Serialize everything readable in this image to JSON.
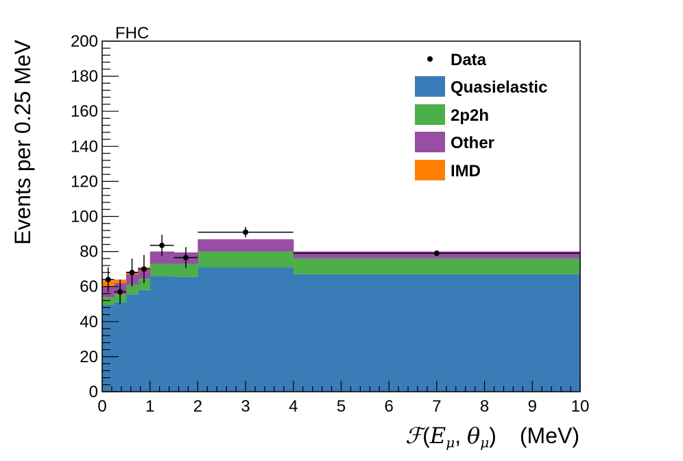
{
  "chart_data": {
    "type": "stacked-histogram",
    "tag": "FHC",
    "xlabel": {
      "func": "ℱ",
      "open": "(",
      "v1": "E",
      "v1sub": "μ",
      "sep": ", ",
      "v2": "θ",
      "v2sub": "μ",
      "close": ")",
      "unit": "(MeV)"
    },
    "ylabel": "Events per 0.25 MeV",
    "xlim": [
      0,
      10
    ],
    "ylim": [
      0,
      200
    ],
    "x_ticks": [
      "0",
      "1",
      "2",
      "3",
      "4",
      "5",
      "6",
      "7",
      "8",
      "9",
      "10"
    ],
    "y_ticks": [
      "0",
      "20",
      "40",
      "60",
      "80",
      "100",
      "120",
      "140",
      "160",
      "180",
      "200"
    ],
    "bin_edges": [
      0,
      0.25,
      0.5,
      0.75,
      1.0,
      1.5,
      2.0,
      4.0,
      10.0
    ],
    "series": [
      {
        "name": "Quasielastic",
        "color": "#3a7cb8",
        "values": [
          49.5,
          51,
          55.5,
          58,
          66,
          65.5,
          71,
          67
        ]
      },
      {
        "name": "2p2h",
        "color": "#4daf4a",
        "values": [
          4.5,
          4.5,
          5.5,
          6.5,
          7,
          7.5,
          9,
          9
        ]
      },
      {
        "name": "Other",
        "color": "#984ea3",
        "values": [
          6,
          6.5,
          6,
          5,
          7,
          6.5,
          7,
          4
        ]
      },
      {
        "name": "IMD",
        "color": "#ff7f00",
        "values": [
          3.5,
          2,
          1.5,
          1.5,
          0,
          0,
          0,
          0
        ]
      }
    ],
    "data_points": {
      "name": "Data",
      "x": [
        0.125,
        0.375,
        0.625,
        0.875,
        1.25,
        1.75,
        3.0,
        7.0
      ],
      "y": [
        64,
        57,
        68,
        70,
        83.5,
        76.5,
        91,
        79
      ],
      "xerr": [
        0.125,
        0.125,
        0.125,
        0.125,
        0.25,
        0.25,
        1.0,
        3.0
      ],
      "yerr": [
        7,
        7,
        8,
        8,
        6,
        6,
        3,
        1.5
      ]
    },
    "legend": [
      {
        "label": "Data",
        "style": "marker"
      },
      {
        "label": "Quasielastic",
        "style": "box",
        "color": "#3a7cb8"
      },
      {
        "label": "2p2h",
        "style": "box",
        "color": "#4daf4a"
      },
      {
        "label": "Other",
        "style": "box",
        "color": "#984ea3"
      },
      {
        "label": "IMD",
        "style": "box",
        "color": "#ff7f00"
      }
    ]
  }
}
